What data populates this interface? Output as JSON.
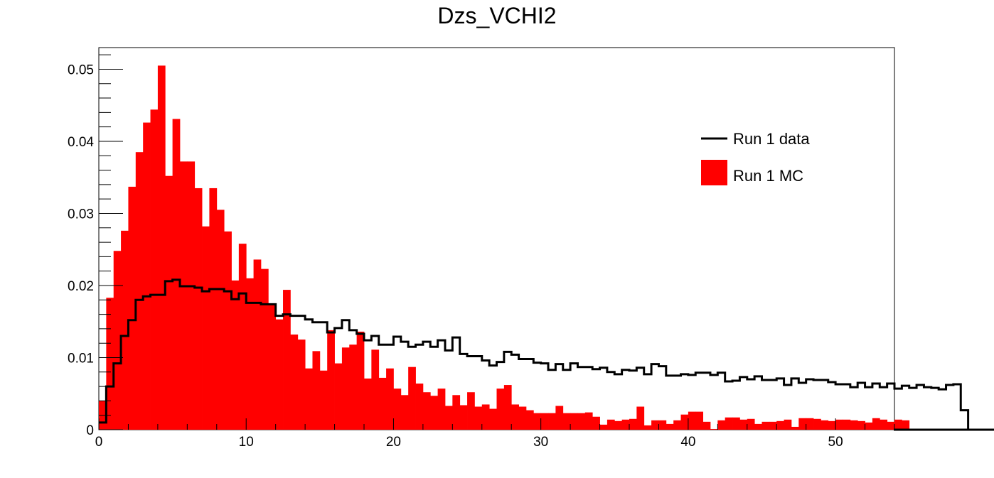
{
  "chart_data": {
    "type": "histogram",
    "title": "Dzs_VCHI2",
    "xlabel": "",
    "ylabel": "",
    "xlim": [
      0,
      54
    ],
    "ylim": [
      0,
      0.053
    ],
    "bin_edges_start": 0,
    "bin_width": 0.5,
    "x_ticks": [
      0,
      10,
      20,
      30,
      40,
      50
    ],
    "x_tick_labels": [
      "0",
      "10",
      "20",
      "30",
      "40",
      "50"
    ],
    "y_ticks": [
      0,
      0.01,
      0.02,
      0.03,
      0.04,
      0.05
    ],
    "y_tick_labels": [
      "0",
      "0.01",
      "0.02",
      "0.03",
      "0.04",
      "0.05"
    ],
    "legend_position": "top-right",
    "series": [
      {
        "name": "Run 1 data",
        "style": "step-line",
        "color": "#000000",
        "values": [
          0.001,
          0.006,
          0.0092,
          0.013,
          0.0152,
          0.018,
          0.0185,
          0.0187,
          0.0187,
          0.0206,
          0.0208,
          0.0199,
          0.0199,
          0.0197,
          0.0192,
          0.0195,
          0.0195,
          0.0192,
          0.0181,
          0.0189,
          0.0176,
          0.0176,
          0.0174,
          0.0174,
          0.0158,
          0.016,
          0.0158,
          0.0158,
          0.0153,
          0.0149,
          0.0149,
          0.0135,
          0.0141,
          0.0152,
          0.0138,
          0.0133,
          0.0124,
          0.013,
          0.0118,
          0.0118,
          0.0129,
          0.0122,
          0.0115,
          0.0118,
          0.0122,
          0.0115,
          0.0124,
          0.011,
          0.0128,
          0.0105,
          0.0102,
          0.0102,
          0.0096,
          0.0089,
          0.0094,
          0.0108,
          0.0104,
          0.0098,
          0.0098,
          0.0093,
          0.0092,
          0.0083,
          0.0091,
          0.0083,
          0.0092,
          0.0087,
          0.0087,
          0.0084,
          0.0086,
          0.008,
          0.0077,
          0.0083,
          0.0082,
          0.0086,
          0.0077,
          0.0091,
          0.0088,
          0.0075,
          0.0075,
          0.0077,
          0.0076,
          0.0079,
          0.0079,
          0.0076,
          0.0079,
          0.0067,
          0.0068,
          0.0073,
          0.007,
          0.0074,
          0.0069,
          0.0069,
          0.0071,
          0.0062,
          0.0071,
          0.0065,
          0.007,
          0.0069,
          0.0069,
          0.0066,
          0.0063,
          0.0063,
          0.0059,
          0.0065,
          0.0059,
          0.0064,
          0.0059,
          0.0064,
          0.0057,
          0.0061,
          0.0058,
          0.0062,
          0.0059,
          0.0058,
          0.0056,
          0.0062,
          0.0063,
          0.0027,
          0,
          0,
          0,
          0,
          0,
          0,
          0,
          0,
          0,
          0
        ]
      },
      {
        "name": "Run 1 MC",
        "style": "filled-bars",
        "color": "#ff0000",
        "values": [
          0.004,
          0.0183,
          0.0248,
          0.0276,
          0.0337,
          0.0385,
          0.0426,
          0.0444,
          0.0505,
          0.0352,
          0.0431,
          0.0372,
          0.0372,
          0.0335,
          0.0282,
          0.0335,
          0.0305,
          0.0275,
          0.0207,
          0.0258,
          0.021,
          0.0236,
          0.0223,
          0.0175,
          0.0153,
          0.0194,
          0.0132,
          0.0125,
          0.0085,
          0.0109,
          0.0082,
          0.0138,
          0.0092,
          0.0114,
          0.0118,
          0.0136,
          0.0071,
          0.0111,
          0.0072,
          0.0085,
          0.0057,
          0.0048,
          0.0087,
          0.0064,
          0.0052,
          0.0047,
          0.0057,
          0.0033,
          0.0048,
          0.0034,
          0.0052,
          0.0032,
          0.0035,
          0.0029,
          0.0057,
          0.0062,
          0.0035,
          0.0032,
          0.0027,
          0.0023,
          0.0023,
          0.0023,
          0.0033,
          0.0023,
          0.0023,
          0.0023,
          0.0024,
          0.0018,
          0.0007,
          0.0014,
          0.0012,
          0.0014,
          0.0015,
          0.0032,
          0.0006,
          0.0013,
          0.0013,
          0.0008,
          0.0013,
          0.0021,
          0.0025,
          0.0025,
          0.0011,
          0.0001,
          0.0013,
          0.0017,
          0.0017,
          0.0014,
          0.0015,
          0.0008,
          0.0011,
          0.0011,
          0.0012,
          0.0014,
          0.0004,
          0.0016,
          0.0016,
          0.0015,
          0.0013,
          0.0012,
          0.0014,
          0.0014,
          0.0013,
          0.0012,
          0.001,
          0.0016,
          0.0014,
          0.0011,
          0.0014,
          0.0013,
          0,
          0,
          0,
          0,
          0,
          0,
          0,
          0,
          0,
          0,
          0,
          0,
          0,
          0,
          0,
          0,
          0,
          0
        ]
      }
    ]
  }
}
